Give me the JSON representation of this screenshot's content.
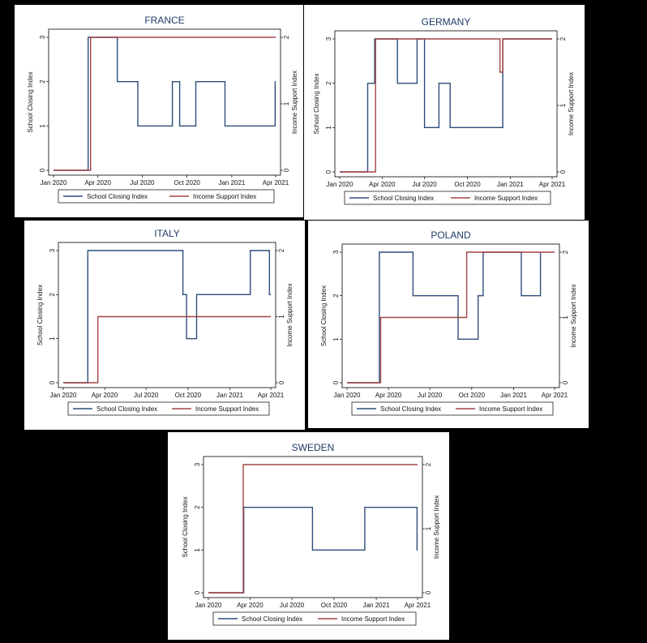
{
  "legend": {
    "school": "School Closing Index",
    "income": "Income Support Index"
  },
  "axes": {
    "left_label": "School Closing Index",
    "right_label": "Income Support Index",
    "x_ticks": [
      {
        "label": "Jan 2020",
        "date": "2020-01-01"
      },
      {
        "label": "Apr 2020",
        "date": "2020-04-01"
      },
      {
        "label": "Jul 2020",
        "date": "2020-07-01"
      },
      {
        "label": "Oct 2020",
        "date": "2020-10-01"
      },
      {
        "label": "Jan 2021",
        "date": "2021-01-01"
      },
      {
        "label": "Apr 2021",
        "date": "2021-04-01"
      }
    ],
    "left_ticks": [
      "0",
      "1",
      "2",
      "3"
    ],
    "right_ticks": [
      "0",
      "1",
      "2"
    ]
  },
  "colors": {
    "school": "#2d4d7a",
    "income": "#a44545"
  },
  "chart_data": [
    {
      "type": "line",
      "title": "FRANCE",
      "xlim": [
        "2020-01-01",
        "2021-04-01"
      ],
      "ylim_left": [
        0,
        3
      ],
      "ylim_right": [
        0,
        2
      ],
      "series": [
        {
          "name": "School Closing Index",
          "axis": "left",
          "points": [
            [
              "2020-01-01",
              0
            ],
            [
              "2020-03-12",
              0
            ],
            [
              "2020-03-12",
              3
            ],
            [
              "2020-05-11",
              3
            ],
            [
              "2020-05-11",
              2
            ],
            [
              "2020-06-22",
              2
            ],
            [
              "2020-06-22",
              1
            ],
            [
              "2020-09-01",
              1
            ],
            [
              "2020-09-01",
              2
            ],
            [
              "2020-09-16",
              2
            ],
            [
              "2020-09-16",
              1
            ],
            [
              "2020-10-19",
              1
            ],
            [
              "2020-10-19",
              2
            ],
            [
              "2020-12-18",
              2
            ],
            [
              "2020-12-18",
              1
            ],
            [
              "2021-03-31",
              1
            ],
            [
              "2021-03-31",
              2
            ],
            [
              "2021-04-01",
              2
            ]
          ]
        },
        {
          "name": "Income Support Index",
          "axis": "right",
          "points": [
            [
              "2020-01-01",
              0
            ],
            [
              "2020-03-17",
              0
            ],
            [
              "2020-03-17",
              2
            ],
            [
              "2021-04-01",
              2
            ]
          ]
        }
      ]
    },
    {
      "type": "line",
      "title": "GERMANY",
      "xlim": [
        "2020-01-01",
        "2021-04-01"
      ],
      "ylim_left": [
        0,
        3
      ],
      "ylim_right": [
        0,
        2
      ],
      "series": [
        {
          "name": "School Closing Index",
          "axis": "left",
          "points": [
            [
              "2020-01-01",
              0
            ],
            [
              "2020-03-01",
              0
            ],
            [
              "2020-03-01",
              2
            ],
            [
              "2020-03-16",
              2
            ],
            [
              "2020-03-16",
              3
            ],
            [
              "2020-05-04",
              3
            ],
            [
              "2020-05-04",
              2
            ],
            [
              "2020-06-15",
              2
            ],
            [
              "2020-06-15",
              3
            ],
            [
              "2020-07-01",
              3
            ],
            [
              "2020-07-01",
              1
            ],
            [
              "2020-08-01",
              1
            ],
            [
              "2020-08-01",
              2
            ],
            [
              "2020-08-25",
              2
            ],
            [
              "2020-08-25",
              1
            ],
            [
              "2020-12-16",
              1
            ],
            [
              "2020-12-16",
              3
            ],
            [
              "2021-04-01",
              3
            ]
          ]
        },
        {
          "name": "Income Support Index",
          "axis": "right",
          "points": [
            [
              "2020-01-01",
              0
            ],
            [
              "2020-03-18",
              0
            ],
            [
              "2020-03-18",
              2
            ],
            [
              "2020-12-10",
              2
            ],
            [
              "2020-12-10",
              1.5
            ],
            [
              "2020-12-16",
              1.5
            ],
            [
              "2020-12-16",
              2
            ],
            [
              "2021-04-01",
              2
            ]
          ]
        }
      ]
    },
    {
      "type": "line",
      "title": "ITALY",
      "xlim": [
        "2020-01-01",
        "2021-04-01"
      ],
      "ylim_left": [
        0,
        3
      ],
      "ylim_right": [
        0,
        2
      ],
      "series": [
        {
          "name": "School Closing Index",
          "axis": "left",
          "points": [
            [
              "2020-01-01",
              0
            ],
            [
              "2020-02-24",
              0
            ],
            [
              "2020-02-24",
              3
            ],
            [
              "2020-09-20",
              3
            ],
            [
              "2020-09-20",
              2
            ],
            [
              "2020-09-28",
              2
            ],
            [
              "2020-09-28",
              1
            ],
            [
              "2020-10-20",
              1
            ],
            [
              "2020-10-20",
              2
            ],
            [
              "2021-02-15",
              2
            ],
            [
              "2021-02-15",
              3
            ],
            [
              "2021-03-29",
              3
            ],
            [
              "2021-03-29",
              2
            ],
            [
              "2021-04-01",
              2
            ]
          ]
        },
        {
          "name": "Income Support Index",
          "axis": "right",
          "points": [
            [
              "2020-01-01",
              0
            ],
            [
              "2020-03-17",
              0
            ],
            [
              "2020-03-17",
              1
            ],
            [
              "2021-04-01",
              1
            ]
          ]
        }
      ]
    },
    {
      "type": "line",
      "title": "POLAND",
      "xlim": [
        "2020-01-01",
        "2021-04-01"
      ],
      "ylim_left": [
        0,
        3
      ],
      "ylim_right": [
        0,
        2
      ],
      "series": [
        {
          "name": "School Closing Index",
          "axis": "left",
          "points": [
            [
              "2020-01-01",
              0
            ],
            [
              "2020-03-12",
              0
            ],
            [
              "2020-03-12",
              3
            ],
            [
              "2020-05-25",
              3
            ],
            [
              "2020-05-25",
              2
            ],
            [
              "2020-09-01",
              2
            ],
            [
              "2020-09-01",
              1
            ],
            [
              "2020-10-15",
              1
            ],
            [
              "2020-10-15",
              2
            ],
            [
              "2020-10-26",
              2
            ],
            [
              "2020-10-26",
              3
            ],
            [
              "2021-01-18",
              3
            ],
            [
              "2021-01-18",
              2
            ],
            [
              "2021-03-01",
              2
            ],
            [
              "2021-03-01",
              3
            ]
          ]
        },
        {
          "name": "Income Support Index",
          "axis": "right",
          "points": [
            [
              "2020-01-01",
              0
            ],
            [
              "2020-03-15",
              0
            ],
            [
              "2020-03-15",
              1
            ],
            [
              "2020-09-20",
              1
            ],
            [
              "2020-09-20",
              2
            ],
            [
              "2021-04-01",
              2
            ]
          ]
        }
      ]
    },
    {
      "type": "line",
      "title": "SWEDEN",
      "xlim": [
        "2020-01-01",
        "2021-04-01"
      ],
      "ylim_left": [
        0,
        3
      ],
      "ylim_right": [
        0,
        2
      ],
      "series": [
        {
          "name": "School Closing Index",
          "axis": "left",
          "points": [
            [
              "2020-01-01",
              0
            ],
            [
              "2020-03-18",
              0
            ],
            [
              "2020-03-18",
              2
            ],
            [
              "2020-08-15",
              2
            ],
            [
              "2020-08-15",
              1
            ],
            [
              "2020-12-07",
              1
            ],
            [
              "2020-12-07",
              2
            ],
            [
              "2021-03-31",
              2
            ],
            [
              "2021-03-31",
              1
            ],
            [
              "2021-04-01",
              1
            ]
          ]
        },
        {
          "name": "Income Support Index",
          "axis": "right",
          "points": [
            [
              "2020-01-01",
              0
            ],
            [
              "2020-03-17",
              0
            ],
            [
              "2020-03-17",
              2
            ],
            [
              "2021-04-01",
              2
            ]
          ]
        }
      ]
    }
  ]
}
